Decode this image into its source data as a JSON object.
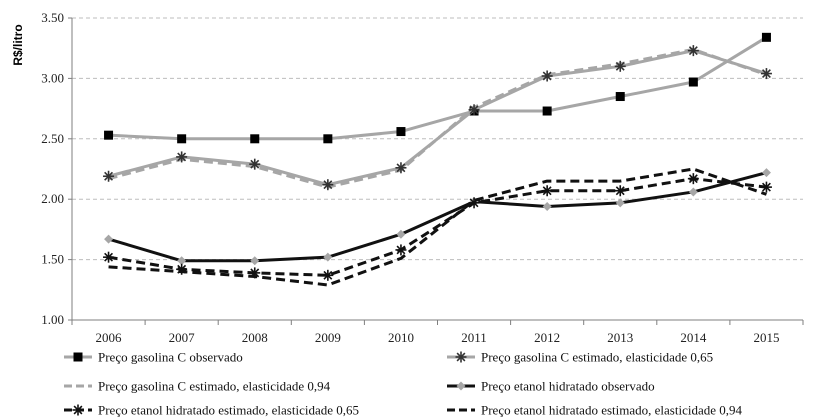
{
  "chart_data": {
    "type": "line",
    "title": "",
    "xlabel": "",
    "ylabel": "R$/litro",
    "x": [
      "2006",
      "2007",
      "2008",
      "2009",
      "2010",
      "2011",
      "2012",
      "2013",
      "2014",
      "2015"
    ],
    "ylim": [
      1.0,
      3.5
    ],
    "yticks": [
      "1.00",
      "1.50",
      "2.00",
      "2.50",
      "3.00",
      "3.50"
    ],
    "grid": "horizontal dashed",
    "legend_position": "bottom",
    "series": [
      {
        "name": "Preço gasolina C observado",
        "values": [
          2.53,
          2.5,
          2.5,
          2.5,
          2.56,
          2.73,
          2.73,
          2.85,
          2.97,
          3.34
        ],
        "color": "#a6a6a6",
        "line": "solid",
        "marker": "square",
        "marker_color": "#000000"
      },
      {
        "name": "Preço gasolina C estimado, elasticidade 0,65",
        "values": [
          2.19,
          2.35,
          2.29,
          2.12,
          2.26,
          2.74,
          3.02,
          3.1,
          3.23,
          3.04
        ],
        "color": "#a6a6a6",
        "line": "solid",
        "marker": "star",
        "marker_color": "#333333"
      },
      {
        "name": "Preço gasolina C estimado, elasticidade 0,94",
        "values": [
          2.17,
          2.33,
          2.27,
          2.1,
          2.24,
          2.76,
          3.03,
          3.12,
          3.24,
          3.03
        ],
        "color": "#a6a6a6",
        "line": "dashed",
        "marker": "none",
        "marker_color": "#a6a6a6"
      },
      {
        "name": "Preço etanol hidratado observado",
        "values": [
          1.67,
          1.49,
          1.49,
          1.52,
          1.71,
          1.98,
          1.94,
          1.97,
          2.06,
          2.22
        ],
        "color": "#111111",
        "line": "solid",
        "marker": "diamond",
        "marker_color": "#a6a6a6"
      },
      {
        "name": "Preço etanol hidratado estimado, elasticidade 0,65",
        "values": [
          1.52,
          1.42,
          1.39,
          1.37,
          1.58,
          1.97,
          2.07,
          2.07,
          2.17,
          2.1
        ],
        "color": "#111111",
        "line": "dashed",
        "marker": "star",
        "marker_color": "#111111"
      },
      {
        "name": "Preço etanol hidratado estimado, elasticidade 0,94",
        "values": [
          1.44,
          1.4,
          1.36,
          1.29,
          1.51,
          1.99,
          2.15,
          2.15,
          2.25,
          2.04
        ],
        "color": "#111111",
        "line": "dashed",
        "marker": "none",
        "marker_color": "#111111"
      }
    ]
  }
}
